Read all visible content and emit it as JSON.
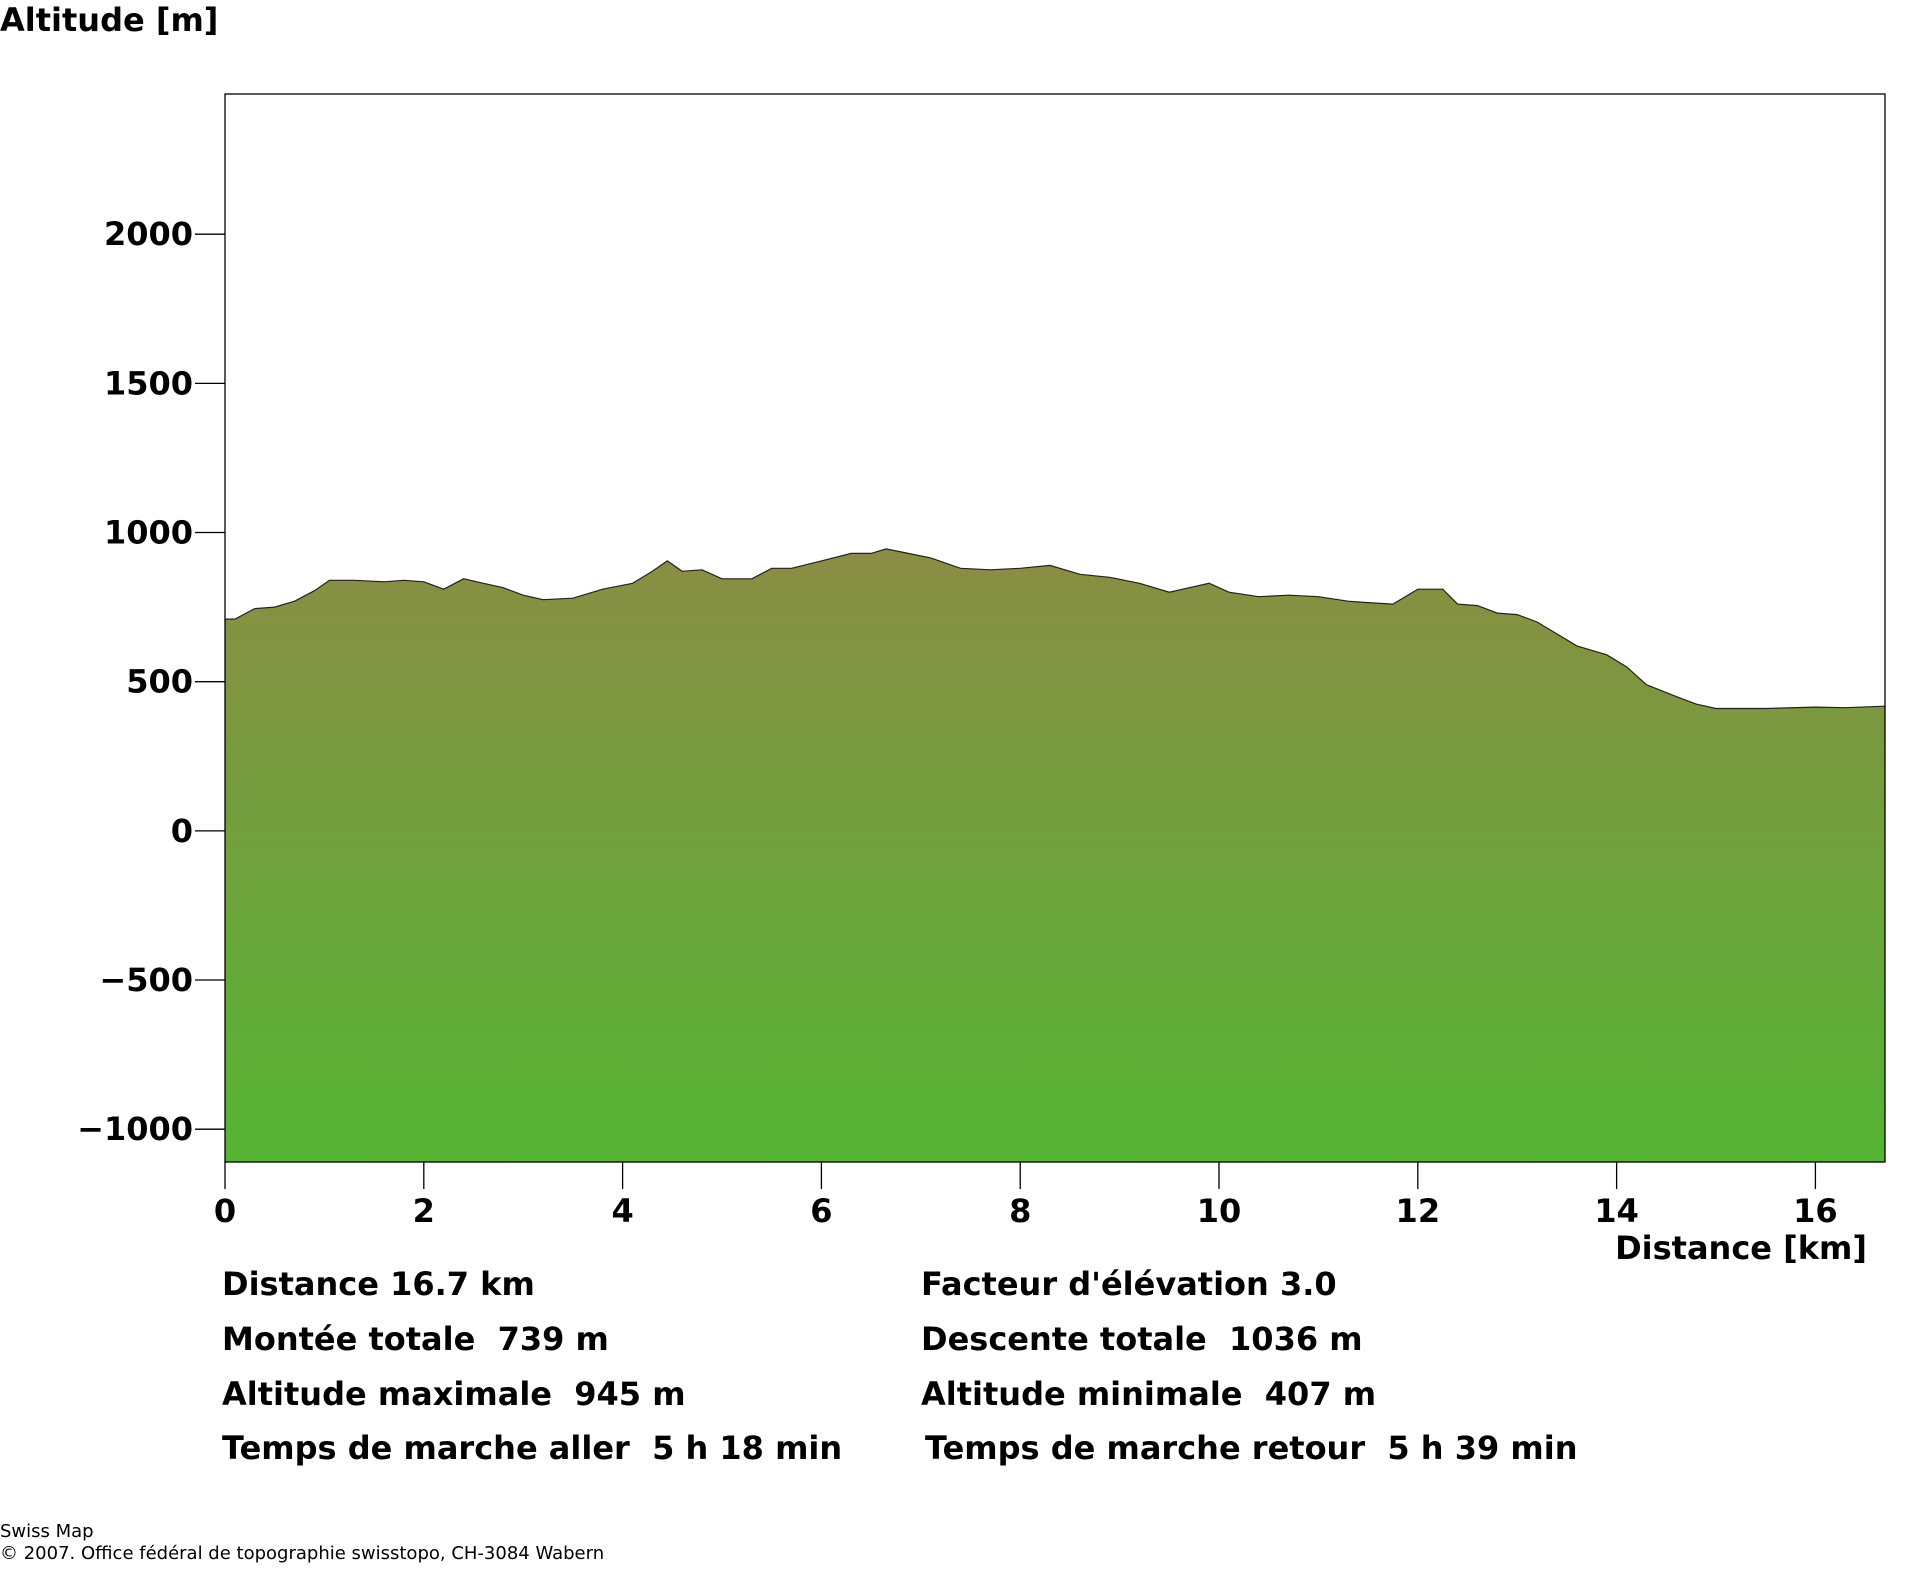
{
  "chart_data": {
    "type": "area",
    "ylabel": "Altitude [m]",
    "xlabel": "Distance [km]",
    "xlim": [
      0,
      16.7
    ],
    "ylim": [
      -1110,
      2470
    ],
    "xticks": [
      0,
      2,
      4,
      6,
      8,
      10,
      12,
      14,
      16
    ],
    "yticks": [
      -1000,
      -500,
      0,
      500,
      1000,
      1500,
      2000
    ],
    "grid": false,
    "legend": "none",
    "colors": {
      "fill_top": "#8a8d44",
      "fill_bottom": "#55b534",
      "outline": "#222222"
    },
    "x": [
      0,
      0.1,
      0.3,
      0.5,
      0.7,
      0.9,
      1.05,
      1.3,
      1.6,
      1.8,
      2.0,
      2.2,
      2.4,
      2.6,
      2.8,
      3.0,
      3.2,
      3.5,
      3.8,
      4.1,
      4.3,
      4.45,
      4.6,
      4.8,
      5.0,
      5.3,
      5.5,
      5.7,
      6.0,
      6.3,
      6.5,
      6.65,
      6.8,
      7.1,
      7.4,
      7.7,
      8.0,
      8.3,
      8.6,
      8.9,
      9.2,
      9.5,
      9.7,
      9.9,
      10.1,
      10.4,
      10.7,
      11.0,
      11.3,
      11.5,
      11.75,
      12.0,
      12.25,
      12.4,
      12.6,
      12.8,
      13.0,
      13.2,
      13.4,
      13.6,
      13.9,
      14.1,
      14.3,
      14.6,
      14.8,
      15.0,
      15.5,
      16.0,
      16.3,
      16.7
    ],
    "y": [
      710,
      710,
      745,
      750,
      770,
      805,
      840,
      840,
      835,
      840,
      835,
      810,
      845,
      830,
      815,
      790,
      775,
      780,
      810,
      830,
      870,
      905,
      870,
      875,
      845,
      845,
      880,
      880,
      905,
      930,
      930,
      945,
      935,
      915,
      880,
      875,
      880,
      890,
      860,
      850,
      830,
      800,
      815,
      830,
      800,
      785,
      790,
      785,
      770,
      765,
      760,
      810,
      810,
      760,
      755,
      730,
      725,
      700,
      660,
      620,
      590,
      550,
      490,
      450,
      425,
      410,
      410,
      415,
      413,
      418
    ]
  },
  "labels": {
    "ylabel": "Altitude [m]",
    "xlabel": "Distance [km]"
  },
  "stats": {
    "distance": "Distance 16.7 km",
    "elevation_factor": "Facteur d'élévation 3.0",
    "total_ascent": "Montée totale  739 m",
    "total_descent": "Descente totale  1036 m",
    "max_altitude": "Altitude maximale  945 m",
    "min_altitude": "Altitude minimale  407 m",
    "walk_time_out": "Temps de marche aller  5 h 18 min",
    "walk_time_back": "Temps de marche retour  5 h 39 min"
  },
  "footer": {
    "line1": "Swiss Map",
    "line2": "© 2007. Office fédéral de topographie swisstopo, CH-3084 Wabern"
  }
}
